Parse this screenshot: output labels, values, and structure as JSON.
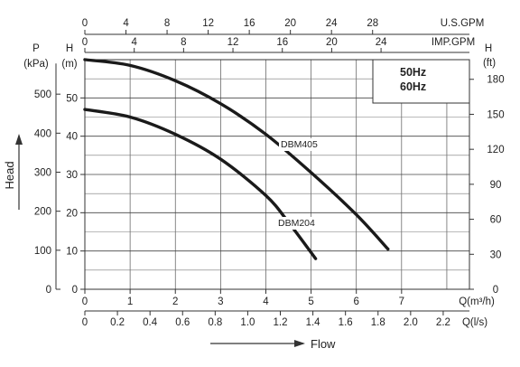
{
  "chart_data": {
    "type": "line",
    "legend_box": [
      "50Hz",
      "60Hz"
    ],
    "xlabel": "Flow",
    "ylabel": "Head",
    "grid": true,
    "axes": {
      "q": {
        "unit": "Q(m³/h)",
        "range": [
          0,
          8.5
        ],
        "ticks": [
          0,
          1,
          2,
          3,
          4,
          5,
          6,
          7
        ],
        "tick_labels": [
          "0",
          "1",
          "2",
          "3",
          "4",
          "5",
          "6",
          "7"
        ]
      },
      "ls": {
        "unit": "Q(l/s)",
        "ticks": [
          0,
          0.2,
          0.4,
          0.6,
          0.8,
          1.0,
          1.2,
          1.4,
          1.6,
          1.8,
          2.0,
          2.2
        ],
        "tick_labels": [
          "0",
          "0.2",
          "0.4",
          "0.6",
          "0.8",
          "1.0",
          "1.2",
          "1.4",
          "1.6",
          "1.8",
          "2.0",
          "2.2"
        ]
      },
      "usgpm": {
        "unit": "U.S.GPM",
        "ticks": [
          0,
          4,
          8,
          12,
          16,
          20,
          24,
          28
        ],
        "tick_labels": [
          "0",
          "4",
          "8",
          "12",
          "16",
          "20",
          "24",
          "28"
        ]
      },
      "impgpm": {
        "unit": "IMP.GPM",
        "ticks": [
          0,
          4,
          8,
          12,
          16,
          20,
          24
        ],
        "tick_labels": [
          "0",
          "4",
          "8",
          "12",
          "16",
          "20",
          "24"
        ]
      },
      "h_m": {
        "unit": "(m)",
        "head": "H",
        "range": [
          0,
          60
        ],
        "ticks": [
          0,
          10,
          20,
          30,
          40,
          50
        ],
        "tick_labels": [
          "0",
          "10",
          "20",
          "30",
          "40",
          "50"
        ]
      },
      "p_kpa": {
        "unit": "(kPa)",
        "head": "P",
        "ticks": [
          0,
          100,
          200,
          300,
          400,
          500
        ],
        "tick_labels": [
          "0",
          "100",
          "200",
          "300",
          "400",
          "500"
        ]
      },
      "h_ft": {
        "unit": "(ft)",
        "head": "H",
        "ticks": [
          0,
          30,
          60,
          90,
          120,
          150,
          180
        ],
        "tick_labels": [
          "0",
          "30",
          "60",
          "90",
          "120",
          "150",
          "180"
        ]
      }
    },
    "series": [
      {
        "name": "DBM405",
        "x": [
          0,
          1,
          2,
          3,
          4,
          5,
          6,
          6.7
        ],
        "y": [
          60,
          58.5,
          54.5,
          48.5,
          40.5,
          30.5,
          19.5,
          10.5
        ]
      },
      {
        "name": "DBM204",
        "x": [
          0,
          1,
          2,
          3,
          4,
          4.5,
          5.1
        ],
        "y": [
          47,
          45,
          40.5,
          34,
          24.5,
          17.5,
          8
        ]
      }
    ]
  }
}
